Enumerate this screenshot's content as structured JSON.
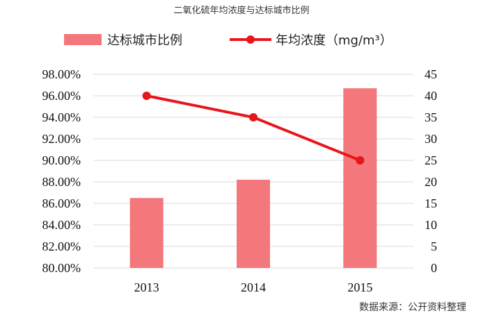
{
  "title": "二氧化硫年均浓度与达标城市比例",
  "source": "数据来源：公开资料整理",
  "colors": {
    "bar": "#f4777b",
    "line": "#e8151b",
    "grid": "#d9d9d9"
  },
  "chart_data": {
    "type": "bar+line",
    "categories": [
      "2013",
      "2014",
      "2015"
    ],
    "series": [
      {
        "name": "达标城市比例",
        "type": "bar",
        "axis": "left",
        "values": [
          86.5,
          88.2,
          96.7
        ]
      },
      {
        "name": "年均浓度（mg/m³）",
        "type": "line",
        "axis": "right",
        "values": [
          40,
          35,
          25
        ]
      }
    ],
    "y_left": {
      "min": 80,
      "max": 98,
      "step": 2,
      "ticks": [
        "80.00%",
        "82.00%",
        "84.00%",
        "86.00%",
        "88.00%",
        "90.00%",
        "92.00%",
        "94.00%",
        "96.00%",
        "98.00%"
      ]
    },
    "y_right": {
      "min": 0,
      "max": 45,
      "step": 5,
      "ticks": [
        "0",
        "5",
        "10",
        "15",
        "20",
        "25",
        "30",
        "35",
        "40",
        "45"
      ]
    },
    "grid": true,
    "legend_position": "top"
  }
}
